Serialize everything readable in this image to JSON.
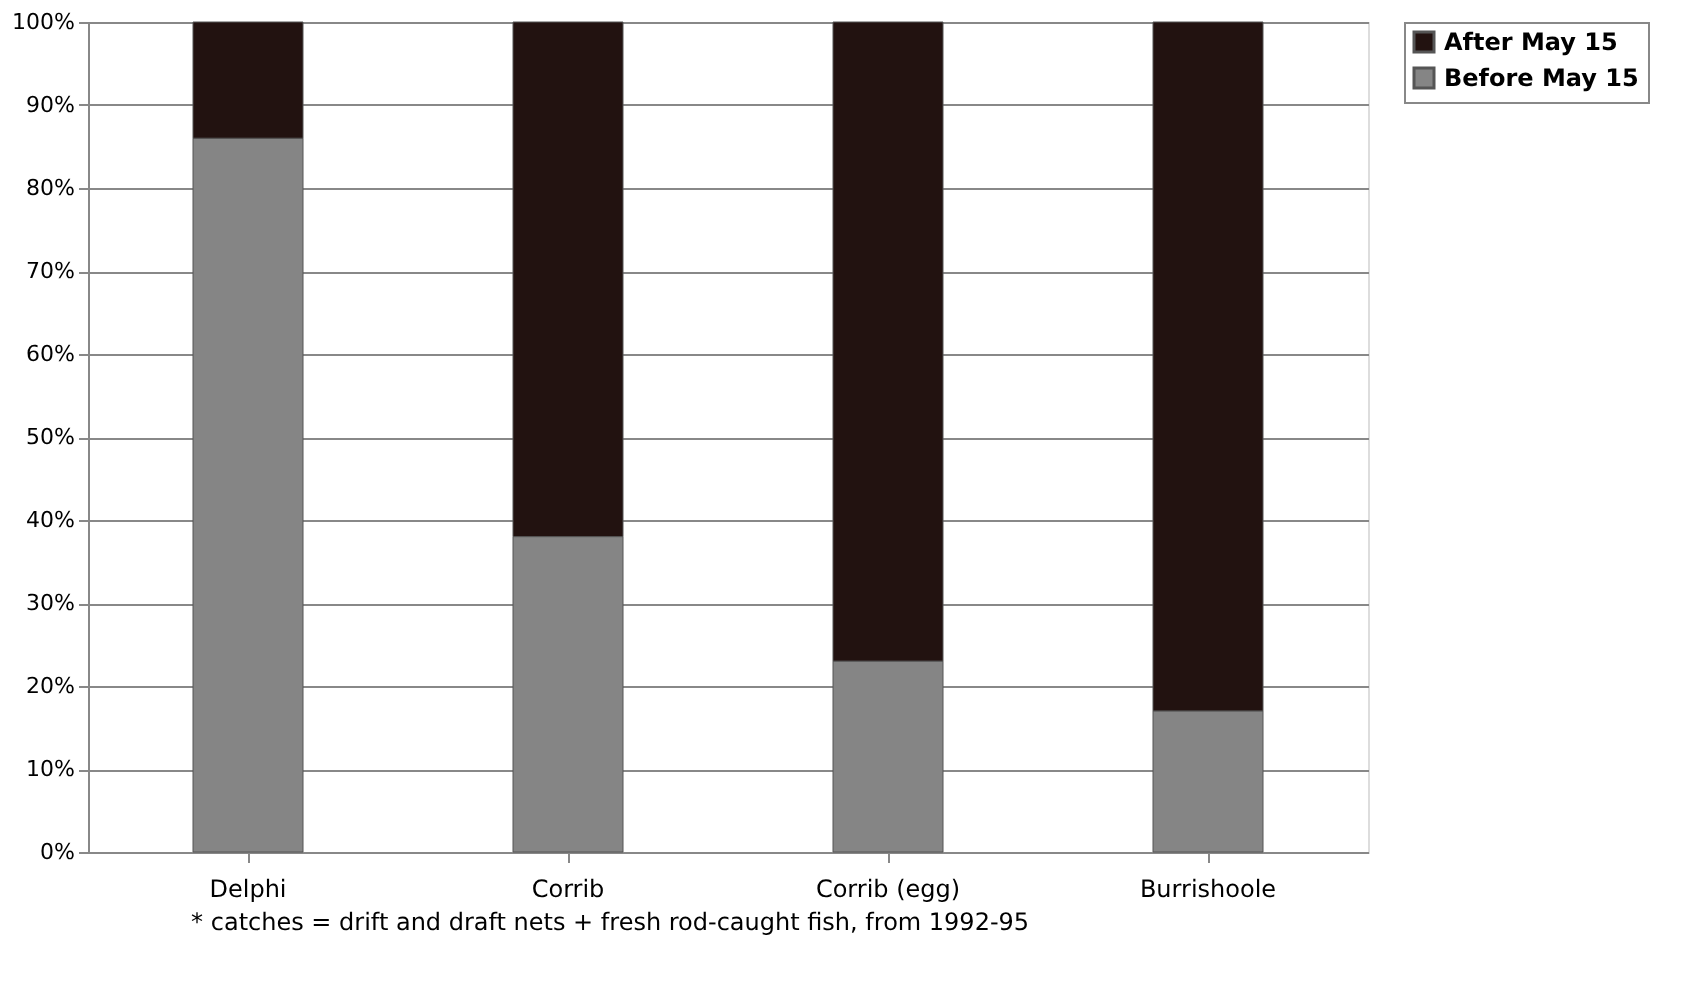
{
  "chart_data": {
    "type": "bar",
    "stacked": true,
    "categories": [
      "Delphi",
      "Corrib",
      "Corrib (egg)",
      "Burrishoole"
    ],
    "series": [
      {
        "name": "Before May 15",
        "color": "#858585",
        "values": [
          86,
          38,
          23,
          17
        ]
      },
      {
        "name": "After May 15",
        "color": "#221210",
        "values": [
          14,
          62,
          77,
          83
        ]
      }
    ],
    "ylim": [
      0,
      100
    ],
    "yticks": [
      {
        "value": 0,
        "label": "0%"
      },
      {
        "value": 10,
        "label": "10%"
      },
      {
        "value": 20,
        "label": "20%"
      },
      {
        "value": 30,
        "label": "30%"
      },
      {
        "value": 40,
        "label": "40%"
      },
      {
        "value": 50,
        "label": "50%"
      },
      {
        "value": 60,
        "label": "60%"
      },
      {
        "value": 70,
        "label": "70%"
      },
      {
        "value": 80,
        "label": "80%"
      },
      {
        "value": 90,
        "label": "90%"
      },
      {
        "value": 100,
        "label": "100%"
      }
    ],
    "grid": "y",
    "legend": "right",
    "annotations": [
      "* catches = drift and draft nets + fresh rod-caught fish, from 1992-95"
    ]
  }
}
